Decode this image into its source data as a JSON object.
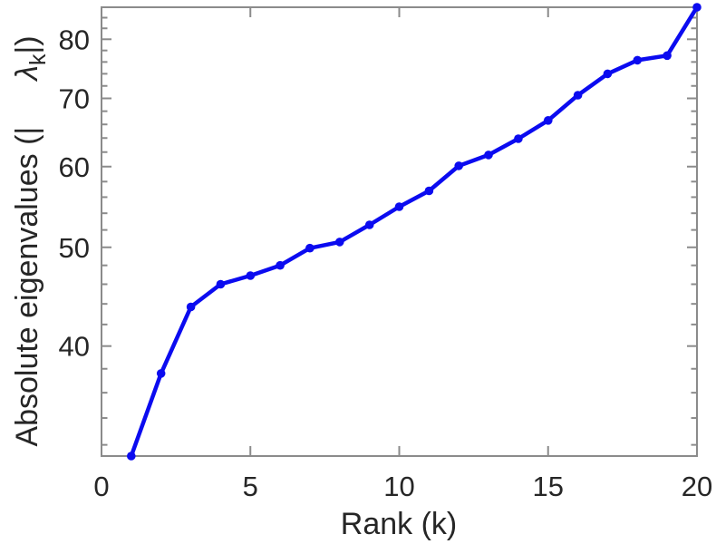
{
  "figure": {
    "background": "#ffffff"
  },
  "chart_data": {
    "type": "line",
    "title": "",
    "xlabel": "Rank (k)",
    "ylabel_prefix": "Absolute eigenvalues (|",
    "ylabel_gap": "   ",
    "ylabel_symbol": "λ",
    "ylabel_subscript": "k",
    "ylabel_suffix": "|)",
    "x": [
      1,
      2,
      3,
      4,
      5,
      6,
      7,
      8,
      9,
      10,
      11,
      12,
      13,
      14,
      15,
      16,
      17,
      18,
      19,
      20
    ],
    "series": [
      {
        "name": "absolute-eigenvalues",
        "values": [
          31.2,
          37.6,
          43.7,
          46.0,
          46.9,
          48.0,
          49.9,
          50.6,
          52.6,
          54.8,
          56.8,
          60.1,
          61.6,
          63.9,
          66.6,
          70.5,
          74.0,
          76.3,
          77.1,
          86.0
        ]
      }
    ],
    "xscale": "linear",
    "yscale": "log",
    "xlim": [
      0,
      20
    ],
    "ylim": [
      31.2,
      86.0
    ],
    "xticks": [
      0,
      5,
      10,
      15,
      20
    ],
    "yticks": [
      40,
      50,
      60,
      70,
      80
    ],
    "yminorticks": [
      32,
      34,
      36,
      38,
      42,
      44,
      46,
      48,
      52,
      54,
      56,
      58,
      62,
      64,
      66,
      68,
      72,
      74,
      76,
      78,
      82,
      84
    ],
    "grid": false,
    "legend": "none",
    "marker": "circle",
    "line_color": "#0b0bf0",
    "axis_color": "#8b8b8b",
    "label_color": "#262626"
  }
}
